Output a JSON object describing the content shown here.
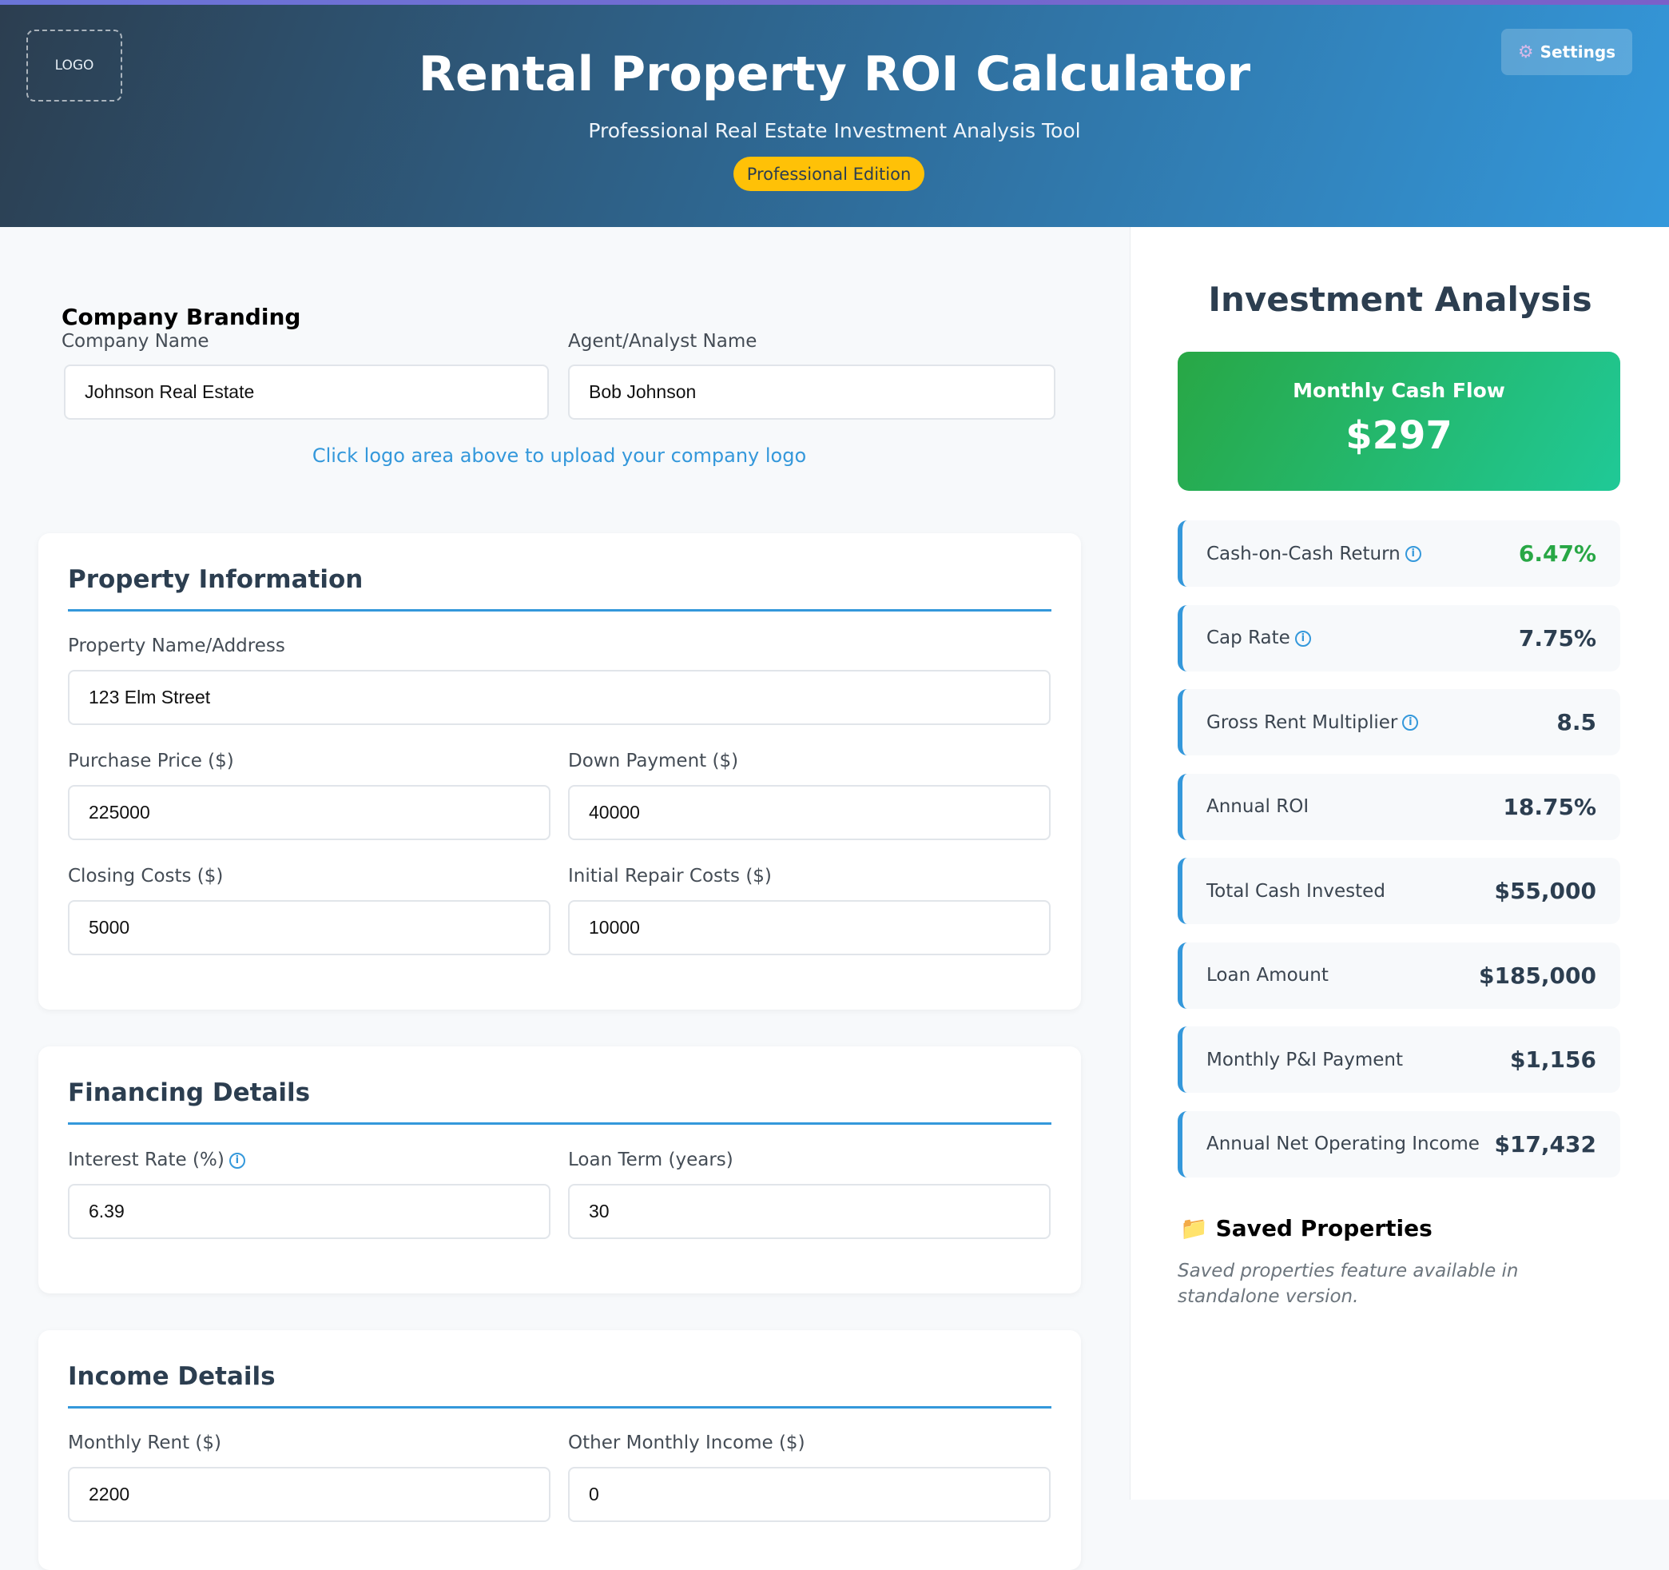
{
  "header": {
    "logo_label": "LOGO",
    "settings_label": "Settings",
    "title": "Rental Property ROI Calculator",
    "subtitle": "Professional Real Estate Investment Analysis Tool",
    "badge": "Professional Edition"
  },
  "branding": {
    "title": "Company Branding",
    "company_label": "Company Name",
    "company_value": "Johnson Real Estate",
    "agent_label": "Agent/Analyst Name",
    "agent_value": "Bob Johnson",
    "logo_hint": "Click logo area above to upload your company logo"
  },
  "property": {
    "title": "Property Information",
    "name_label": "Property Name/Address",
    "name_value": "123 Elm Street",
    "price_label": "Purchase Price ($)",
    "price_value": "225000",
    "down_label": "Down Payment ($)",
    "down_value": "40000",
    "closing_label": "Closing Costs ($)",
    "closing_value": "5000",
    "repair_label": "Initial Repair Costs ($)",
    "repair_value": "10000"
  },
  "financing": {
    "title": "Financing Details",
    "rate_label": "Interest Rate (%)",
    "rate_value": "6.39",
    "term_label": "Loan Term (years)",
    "term_value": "30"
  },
  "income": {
    "title": "Income Details",
    "rent_label": "Monthly Rent ($)",
    "rent_value": "2200",
    "other_label": "Other Monthly Income ($)",
    "other_value": "0"
  },
  "analysis": {
    "title": "Investment Analysis",
    "cash_flow_label": "Monthly Cash Flow",
    "cash_flow_value": "$297",
    "metrics": [
      {
        "label": "Cash-on-Cash Return",
        "value": "6.47%",
        "info": true,
        "color": "#28a745"
      },
      {
        "label": "Cap Rate",
        "value": "7.75%",
        "info": true
      },
      {
        "label": "Gross Rent Multiplier",
        "value": "8.5",
        "info": true
      },
      {
        "label": "Annual ROI",
        "value": "18.75%"
      },
      {
        "label": "Total Cash Invested",
        "value": "$55,000"
      },
      {
        "label": "Loan Amount",
        "value": "$185,000"
      },
      {
        "label": "Monthly P&I Payment",
        "value": "$1,156"
      },
      {
        "label": "Annual Net Operating Income",
        "value": "$17,432"
      }
    ]
  },
  "saved": {
    "title": "Saved Properties",
    "note": "Saved properties feature available in standalone version."
  }
}
